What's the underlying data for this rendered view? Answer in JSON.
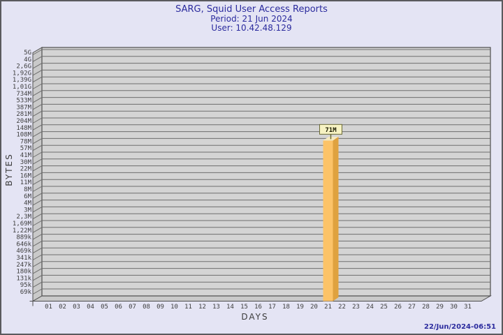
{
  "header": {
    "title": "SARG, Squid User Access Reports",
    "period": "Period: 21 Jun 2024",
    "user": "User: 10.42.48.129"
  },
  "chart_data": {
    "type": "bar",
    "title": "SARG, Squid User Access Reports",
    "subtitle": [
      "Period: 21 Jun 2024",
      "User: 10.42.48.129"
    ],
    "xlabel": "DAYS",
    "ylabel": "BYTES",
    "y_scale": "log",
    "grid": true,
    "x_ticks": [
      "01",
      "02",
      "03",
      "04",
      "05",
      "06",
      "07",
      "08",
      "09",
      "10",
      "11",
      "12",
      "13",
      "14",
      "15",
      "16",
      "17",
      "18",
      "19",
      "20",
      "21",
      "22",
      "23",
      "24",
      "25",
      "26",
      "27",
      "28",
      "29",
      "30",
      "31"
    ],
    "y_ticks": [
      "5G",
      "4G",
      "2,6G",
      "1,92G",
      "1,39G",
      "1,01G",
      "734M",
      "533M",
      "387M",
      "281M",
      "204M",
      "148M",
      "108M",
      "78M",
      "57M",
      "41M",
      "30M",
      "22M",
      "16M",
      "11M",
      "8M",
      "6M",
      "4M",
      "3M",
      "2,3M",
      "1,69M",
      "1,22M",
      "889k",
      "646k",
      "469k",
      "341k",
      "247k",
      "180k",
      "131k",
      "95k",
      "69k"
    ],
    "bars": [
      {
        "x": "21",
        "value": "71M",
        "label": "71M"
      }
    ]
  },
  "footer": {
    "generated": "22/Jun/2024-06:51"
  },
  "colors": {
    "background": "#E4E4F4",
    "panel": "#D4D4D4",
    "wall": "#C9C9C9",
    "edge": "#4e4e4e",
    "grid": "#6E6E6E",
    "tick_text": "#3D3D3D",
    "title_text": "#2B2B9E",
    "bar_front": "#FCC368",
    "bar_side": "#DFA23F",
    "bar_top": "#F5E9BE",
    "callout_bg": "#F7F3C3",
    "callout_border": "#6A6A35",
    "callout_text": "#1A1A00"
  }
}
